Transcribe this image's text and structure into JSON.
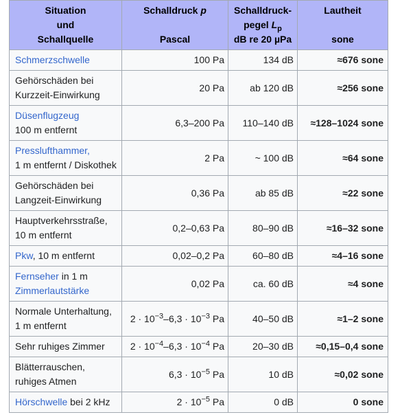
{
  "colors": {
    "header_bg": "#b1b5f8",
    "border": "#a2a9b1",
    "body_bg": "#f8f9fa",
    "link": "#3366cc",
    "text": "#202122"
  },
  "table": {
    "header": {
      "col1": {
        "line1": "Situation",
        "line2": "und",
        "line3": "Schallquelle"
      },
      "col2": {
        "title": "Schalldruck",
        "title_var": "p",
        "unit": "Pascal"
      },
      "col3": {
        "title_line1": "Schalldruck-",
        "title_line2_pre": "pegel",
        "title_var": "L",
        "title_sub": "p",
        "unit": "dB re 20 µPa"
      },
      "col4": {
        "title": "Lautheit",
        "unit": "sone"
      }
    },
    "rows": [
      {
        "situation": [
          {
            "text": "Schmerzschwelle",
            "link": true
          }
        ],
        "pressure": [
          {
            "text": "100 Pa"
          }
        ],
        "level": "134 dB",
        "loudness": "≈676 sone"
      },
      {
        "situation": [
          {
            "text": "Gehörschäden bei"
          },
          {
            "br": true
          },
          {
            "text": "Kurzzeit-Einwirkung"
          }
        ],
        "pressure": [
          {
            "text": "20 Pa"
          }
        ],
        "level": "ab 120 dB",
        "loudness": "≈256 sone"
      },
      {
        "situation": [
          {
            "text": "Düsenflugzeug",
            "link": true
          },
          {
            "br": true
          },
          {
            "text": "100 m entfernt"
          }
        ],
        "pressure": [
          {
            "text": "6,3–200 Pa"
          }
        ],
        "level": "110–140 dB",
        "loudness": "≈128–1024 sone"
      },
      {
        "situation": [
          {
            "text": "Presslufthammer,",
            "link": true
          },
          {
            "br": true
          },
          {
            "text": "1 m entfernt / Diskothek"
          }
        ],
        "pressure": [
          {
            "text": "2 Pa"
          }
        ],
        "level": "~ 100 dB",
        "loudness": "≈64 sone"
      },
      {
        "situation": [
          {
            "text": "Gehörschäden bei"
          },
          {
            "br": true
          },
          {
            "text": "Langzeit-Einwirkung"
          }
        ],
        "pressure": [
          {
            "text": "0,36 Pa"
          }
        ],
        "level": "ab 85 dB",
        "loudness": "≈22 sone"
      },
      {
        "situation": [
          {
            "text": "Hauptverkehrsstraße,"
          },
          {
            "br": true
          },
          {
            "text": "10 m entfernt"
          }
        ],
        "pressure": [
          {
            "text": "0,2–0,63 Pa"
          }
        ],
        "level": "80–90 dB",
        "loudness": "≈16–32 sone"
      },
      {
        "situation": [
          {
            "text": "Pkw",
            "link": true
          },
          {
            "text": ", 10 m entfernt"
          }
        ],
        "pressure": [
          {
            "text": "0,02–0,2 Pa"
          }
        ],
        "level": "60–80 dB",
        "loudness": "≈4–16 sone"
      },
      {
        "situation": [
          {
            "text": "Fernseher",
            "link": true
          },
          {
            "text": " in 1 m"
          },
          {
            "br": true
          },
          {
            "text": "Zimmerlautstärke",
            "link": true
          }
        ],
        "pressure": [
          {
            "text": "0,02 Pa"
          }
        ],
        "level": "ca. 60 dB",
        "loudness": "≈4 sone"
      },
      {
        "situation": [
          {
            "text": "Normale Unterhaltung,"
          },
          {
            "br": true
          },
          {
            "text": "1 m entfernt"
          }
        ],
        "pressure": [
          {
            "text": "2 · 10"
          },
          {
            "text": "−3",
            "sup": true
          },
          {
            "text": "–6,3 · 10"
          },
          {
            "text": "−3",
            "sup": true
          },
          {
            "text": " Pa"
          }
        ],
        "level": "40–50 dB",
        "loudness": "≈1–2 sone"
      },
      {
        "situation": [
          {
            "text": "Sehr ruhiges Zimmer"
          }
        ],
        "pressure": [
          {
            "text": "2 · 10"
          },
          {
            "text": "−4",
            "sup": true
          },
          {
            "text": "–6,3 · 10"
          },
          {
            "text": "−4",
            "sup": true
          },
          {
            "text": " Pa"
          }
        ],
        "level": "20–30 dB",
        "loudness": "≈0,15–0,4 sone"
      },
      {
        "situation": [
          {
            "text": "Blätterrauschen,"
          },
          {
            "br": true
          },
          {
            "text": "ruhiges Atmen"
          }
        ],
        "pressure": [
          {
            "text": "6,3 · 10"
          },
          {
            "text": "−5",
            "sup": true
          },
          {
            "text": " Pa"
          }
        ],
        "level": "10 dB",
        "loudness": "≈0,02 sone"
      },
      {
        "situation": [
          {
            "text": "Hörschwelle",
            "link": true
          },
          {
            "text": " bei 2 kHz"
          }
        ],
        "pressure": [
          {
            "text": "2 · 10"
          },
          {
            "text": "−5",
            "sup": true
          },
          {
            "text": " Pa"
          }
        ],
        "level": "0 dB",
        "loudness": "0 sone"
      }
    ]
  }
}
